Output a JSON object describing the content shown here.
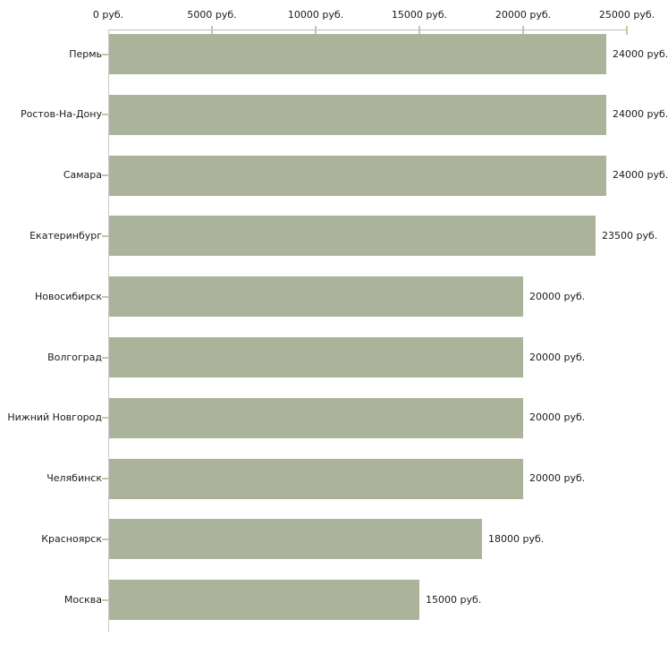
{
  "chart_data": {
    "type": "bar",
    "orientation": "horizontal",
    "title": "",
    "xlabel": "",
    "ylabel": "",
    "categories": [
      "Пермь",
      "Ростов-На-Дону",
      "Самара",
      "Екатеринбург",
      "Новосибирск",
      "Волгоград",
      "Нижний Новгород",
      "Челябинск",
      "Красноярск",
      "Москва"
    ],
    "values": [
      24000,
      24000,
      24000,
      23500,
      20000,
      20000,
      20000,
      20000,
      18000,
      15000
    ],
    "value_labels": [
      "24000 руб.",
      "24000 руб.",
      "24000 руб.",
      "23500 руб.",
      "20000 руб.",
      "20000 руб.",
      "20000 руб.",
      "20000 руб.",
      "18000 руб.",
      "15000 руб."
    ],
    "xlim": [
      0,
      25000
    ],
    "x_ticks": [
      0,
      5000,
      10000,
      15000,
      20000,
      25000
    ],
    "x_tick_labels": [
      "0 руб.",
      "5000 руб.",
      "10000 руб.",
      "15000 руб.",
      "20000 руб.",
      "25000 руб."
    ],
    "grid": false,
    "legend": false,
    "colors": {
      "bar_fill": "#abb49a",
      "tick_mark": "#c6c6a0",
      "axis_line": "#bdbdbd",
      "y_axis_line": "#c9c9c9",
      "text": "#1a1a1a",
      "background": "#ffffff"
    }
  }
}
